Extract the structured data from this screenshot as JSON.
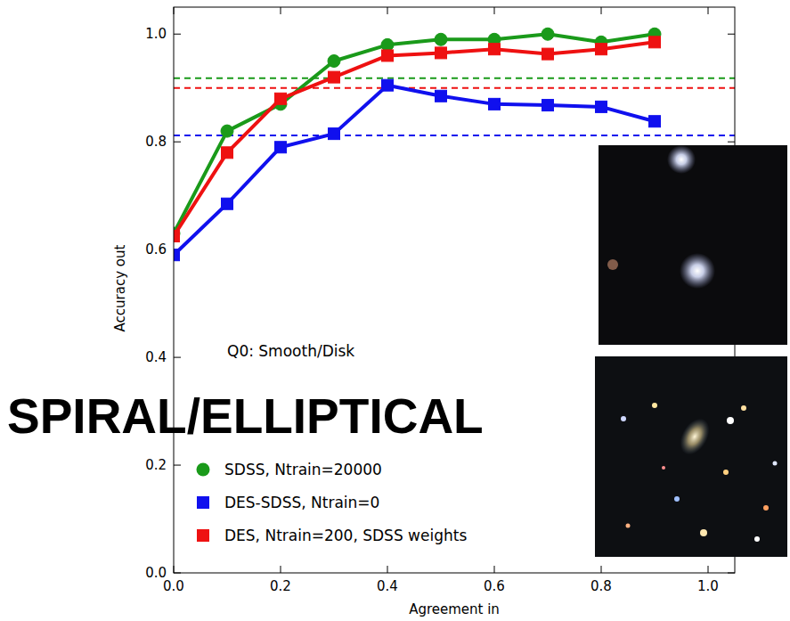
{
  "chart_data": {
    "type": "line",
    "x_label": "Agreement in",
    "y_label": "Accuracy out",
    "annotations": [
      "Q0: Smooth/Disk",
      "SPIRAL/ELLIPTICAL"
    ],
    "x": [
      0.0,
      0.1,
      0.2,
      0.3,
      0.4,
      0.5,
      0.6,
      0.7,
      0.8,
      0.9
    ],
    "series": [
      {
        "name": "SDSS, Ntrain=20000",
        "color": "#1a9a1a",
        "marker": "circle",
        "line_style": "solid",
        "values": [
          0.63,
          0.82,
          0.87,
          0.95,
          0.98,
          0.99,
          0.99,
          1.0,
          0.985,
          1.0
        ],
        "baseline": 0.918
      },
      {
        "name": "DES-SDSS, Ntrain=0",
        "color": "#1010ee",
        "marker": "square",
        "line_style": "solid",
        "values": [
          0.59,
          0.685,
          0.79,
          0.815,
          0.905,
          0.885,
          0.87,
          0.868,
          0.865,
          0.838
        ],
        "baseline": 0.812
      },
      {
        "name": "DES, Ntrain=200, SDSS weights",
        "color": "#ee1111",
        "marker": "square",
        "line_style": "solid",
        "values": [
          0.625,
          0.78,
          0.88,
          0.92,
          0.96,
          0.965,
          0.972,
          0.963,
          0.972,
          0.985
        ],
        "baseline": 0.9
      }
    ],
    "xlim": [
      0,
      1.05
    ],
    "ylim": [
      0,
      1.05
    ],
    "xticks": [
      {
        "value": 0,
        "label": "0.0"
      },
      {
        "value": 0.2,
        "label": "0.2"
      },
      {
        "value": 0.4,
        "label": "0.4"
      },
      {
        "value": 0.6,
        "label": "0.6"
      },
      {
        "value": 0.8,
        "label": "0.8"
      },
      {
        "value": 1,
        "label": "1.0"
      }
    ],
    "yticks": [
      {
        "value": 0,
        "label": "0.0"
      },
      {
        "value": 0.2,
        "label": "0.2"
      },
      {
        "value": 0.4,
        "label": "0.4"
      },
      {
        "value": 0.6,
        "label": "0.6"
      },
      {
        "value": 0.8,
        "label": "0.8"
      },
      {
        "value": 1,
        "label": "1.0"
      }
    ],
    "grid": false,
    "legend": "lower left"
  }
}
